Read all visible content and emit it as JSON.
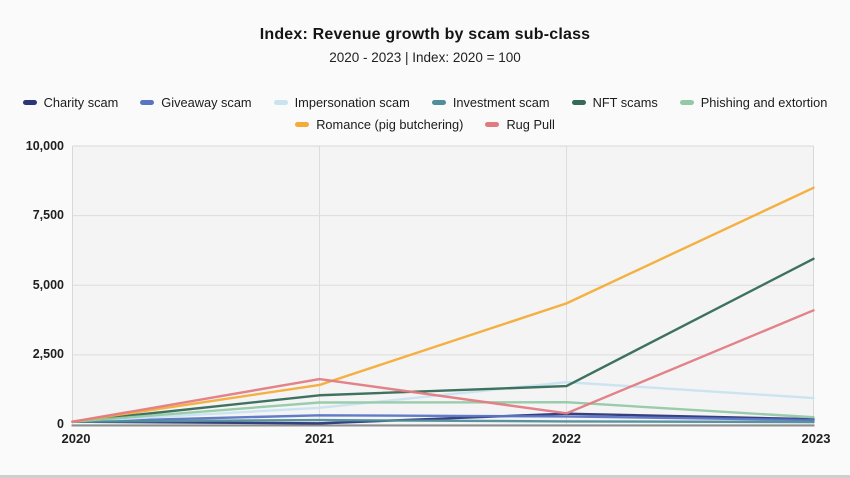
{
  "title": "Index: Revenue growth by scam sub-class",
  "subtitle": "2020 - 2023 | Index: 2020 = 100",
  "colors": {
    "page_background": "#fafafa",
    "plot_background": "#f4f4f5",
    "gridline": "#dcdcdc",
    "plot_border": "#d8d8d8",
    "axis_line": "#8e8e8e"
  },
  "chart_data": {
    "type": "line",
    "x": [
      "2020",
      "2021",
      "2022",
      "2023"
    ],
    "y_ticks": [
      "0",
      "2,500",
      "5,000",
      "7,500",
      "10,000"
    ],
    "y_tick_values": [
      0,
      2500,
      5000,
      7500,
      10000
    ],
    "ylim": [
      0,
      10000
    ],
    "grid": true,
    "legend_position": "top",
    "legend_rows": [
      6,
      2
    ],
    "series": [
      {
        "name": "Charity scam",
        "color": "#2b3677",
        "values": [
          100,
          40,
          390,
          190
        ]
      },
      {
        "name": "Giveaway scam",
        "color": "#5b73c4",
        "values": [
          100,
          330,
          290,
          160
        ]
      },
      {
        "name": "Impersonation scam",
        "color": "#c9e3f0",
        "values": [
          100,
          600,
          1520,
          950
        ]
      },
      {
        "name": "Investment scam",
        "color": "#4f8e9a",
        "values": [
          100,
          160,
          110,
          90
        ]
      },
      {
        "name": "NFT scams",
        "color": "#346a56",
        "values": [
          100,
          1050,
          1380,
          5950
        ]
      },
      {
        "name": "Phishing and extortion",
        "color": "#93c9a7",
        "values": [
          100,
          790,
          800,
          260
        ]
      },
      {
        "name": "Romance (pig butchering)",
        "color": "#f3ac37",
        "values": [
          100,
          1420,
          4350,
          8500
        ]
      },
      {
        "name": "Rug Pull",
        "color": "#e17b82",
        "values": [
          100,
          1630,
          400,
          4100
        ]
      }
    ]
  }
}
